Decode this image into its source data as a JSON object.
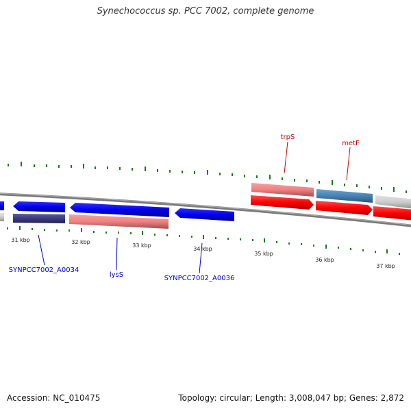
{
  "title": "Synechococcus sp. PCC 7002, complete genome",
  "footer": {
    "accession": "Accession: NC_010475",
    "summary": "Topology: circular; Length: 3,008,047 bp; Genes: 2,872"
  },
  "colors": {
    "forward_red": "#ff0000",
    "light_red": "#f08080",
    "blue": "#0000ee",
    "navy": "#3b3b80",
    "steel_blue": "#4682b4",
    "grey": "#cccccc",
    "tick_green": "#1a7a1a",
    "backbone": "#7a7a7a",
    "label_red": "#cc0000",
    "label_blue": "#0000cc"
  },
  "scale": {
    "tick_labels": [
      "31 kbp",
      "32 kbp",
      "33 kbp",
      "34 kbp",
      "35 kbp",
      "36 kbp",
      "37 kbp"
    ]
  },
  "gene_labels": {
    "top": [
      "trpS",
      "metF"
    ],
    "bottom": [
      "SYNPCC7002_A0034",
      "lysS",
      "SYNPCC7002_A0036"
    ]
  }
}
